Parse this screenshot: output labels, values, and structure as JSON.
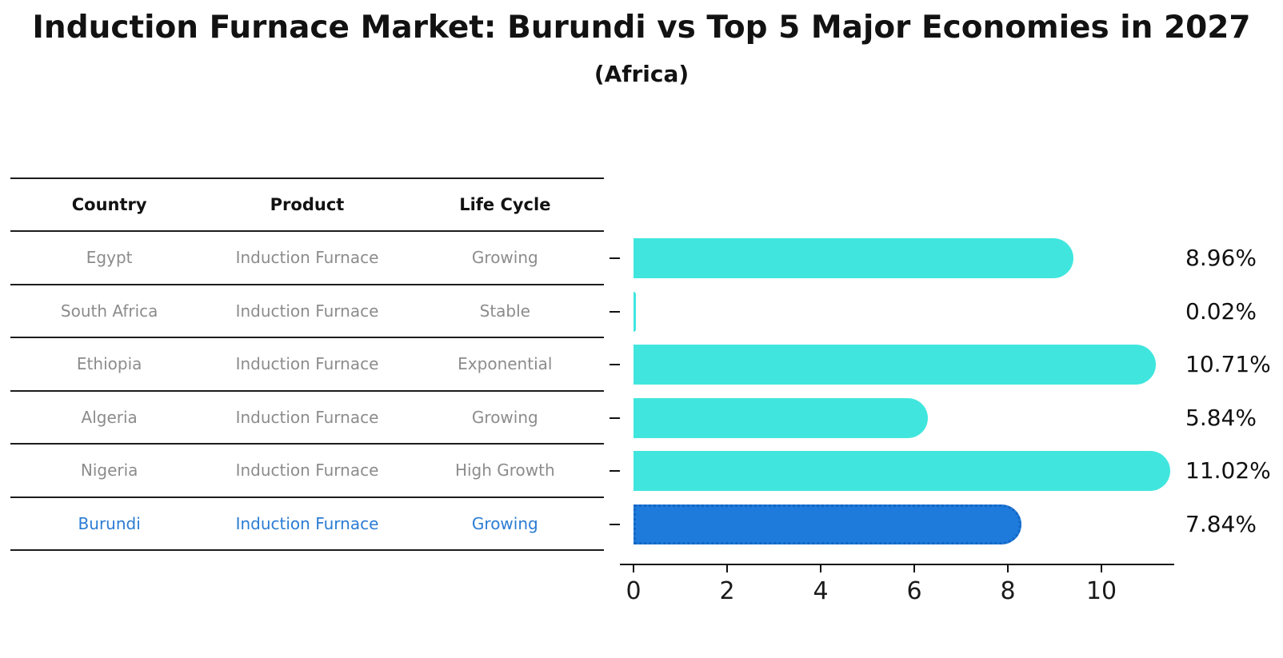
{
  "title": "Induction Furnace Market: Burundi vs Top 5 Major Economies in 2027",
  "subtitle": "(Africa)",
  "table": {
    "headers": [
      "Country",
      "Product",
      "Life Cycle"
    ],
    "rows": [
      {
        "country": "Egypt",
        "product": "Induction Furnace",
        "life_cycle": "Growing",
        "highlight": false
      },
      {
        "country": "South Africa",
        "product": "Induction Furnace",
        "life_cycle": "Stable",
        "highlight": false
      },
      {
        "country": "Ethiopia",
        "product": "Induction Furnace",
        "life_cycle": "Exponential",
        "highlight": false
      },
      {
        "country": "Algeria",
        "product": "Induction Furnace",
        "life_cycle": "Growing",
        "highlight": false
      },
      {
        "country": "Nigeria",
        "product": "Induction Furnace",
        "life_cycle": "High Growth",
        "highlight": false
      },
      {
        "country": "Burundi",
        "product": "Induction Furnace",
        "life_cycle": "Growing",
        "highlight": true
      }
    ]
  },
  "chart_data": {
    "type": "bar",
    "orientation": "horizontal",
    "title": "Induction Furnace Market: Burundi vs Top 5 Major Economies in 2027",
    "subtitle": "(Africa)",
    "categories": [
      "Egypt",
      "South Africa",
      "Ethiopia",
      "Algeria",
      "Nigeria",
      "Burundi"
    ],
    "values": [
      8.96,
      0.02,
      10.71,
      5.84,
      11.02,
      7.84
    ],
    "value_labels": [
      "8.96%",
      "0.02%",
      "10.71%",
      "5.84%",
      "11.02%",
      "7.84%"
    ],
    "unit": "%",
    "x_ticks": [
      0,
      2,
      4,
      6,
      8,
      10
    ],
    "xlim": [
      0,
      11.56
    ],
    "grid": false,
    "legend": false,
    "bar_color": "#40e6de",
    "highlight_color": "#1e7adb",
    "highlight_index": 5,
    "highlight_style": "dotted-border"
  }
}
